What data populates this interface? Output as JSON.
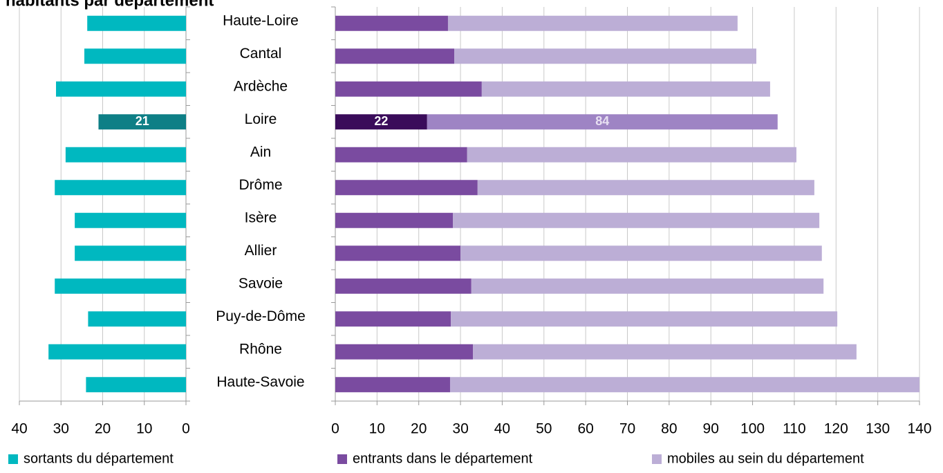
{
  "chart_data": [
    {
      "type": "hbar",
      "title": "habitants par département",
      "reversed": true,
      "categories": [
        "Haute-Loire",
        "Cantal",
        "Ardèche",
        "Loire",
        "Ain",
        "Drôme",
        "Isère",
        "Allier",
        "Savoie",
        "Puy-de-Dôme",
        "Rhône",
        "Haute-Savoie"
      ],
      "series": [
        {
          "name": "sortants du département",
          "color": "#00b8c0",
          "highlight": {
            "index": 3,
            "color": "#0e7f86"
          },
          "values": [
            23.7,
            24.4,
            31.2,
            21,
            28.9,
            31.5,
            26.7,
            26.7,
            31.5,
            23.5,
            33,
            24
          ],
          "value_labels": [
            null,
            null,
            null,
            "21",
            null,
            null,
            null,
            null,
            null,
            null,
            null,
            null
          ]
        }
      ],
      "xlim": [
        0,
        40
      ],
      "xticks": [
        0,
        10,
        20,
        30,
        40
      ],
      "grid": true
    },
    {
      "type": "stacked_hbar",
      "categories": [
        "Haute-Loire",
        "Cantal",
        "Ardèche",
        "Loire",
        "Ain",
        "Drôme",
        "Isère",
        "Allier",
        "Savoie",
        "Puy-de-Dôme",
        "Rhône",
        "Haute-Savoie"
      ],
      "series": [
        {
          "name": "entrants dans le département",
          "color": "#7a4ba0",
          "highlight": {
            "index": 3,
            "color": "#3a0c5a"
          },
          "values": [
            27,
            28.5,
            35.1,
            22,
            31.6,
            34.1,
            28.2,
            30,
            32.6,
            27.7,
            33,
            27.5
          ],
          "value_labels": [
            null,
            null,
            null,
            "22",
            null,
            null,
            null,
            null,
            null,
            null,
            null,
            null
          ]
        },
        {
          "name": "mobiles au sein du département",
          "color": "#bcaed6",
          "highlight": {
            "index": 3,
            "color": "#9e84c4"
          },
          "values": [
            69.4,
            72.4,
            69.1,
            84,
            78.9,
            80.7,
            87.8,
            86.6,
            84.4,
            92.6,
            91.9,
            112.5
          ],
          "value_labels": [
            null,
            null,
            null,
            "84",
            null,
            null,
            null,
            null,
            null,
            null,
            null,
            null
          ]
        }
      ],
      "xlim": [
        0,
        140
      ],
      "xticks": [
        0,
        10,
        20,
        30,
        40,
        50,
        60,
        70,
        80,
        90,
        100,
        110,
        120,
        130,
        140
      ],
      "grid": true
    }
  ]
}
